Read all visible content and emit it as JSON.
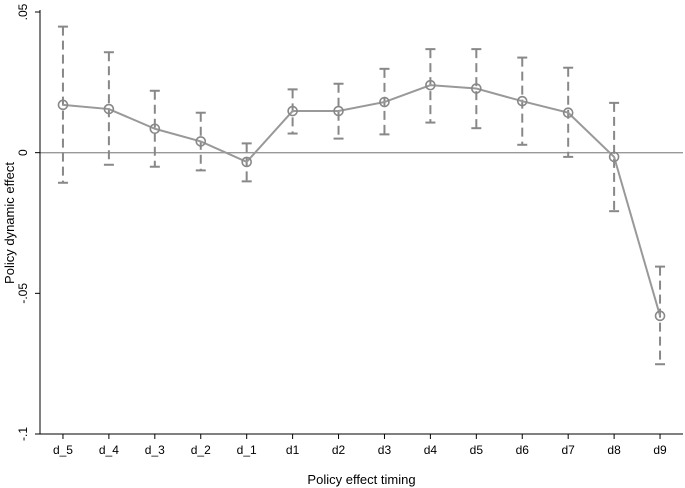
{
  "chart_data": {
    "type": "line",
    "xlabel": "Policy effect timing",
    "ylabel": "Policy dynamic effect",
    "categories": [
      "d_5",
      "d_4",
      "d_3",
      "d_2",
      "d_1",
      "d1",
      "d2",
      "d3",
      "d4",
      "d5",
      "d6",
      "d7",
      "d8",
      "d9"
    ],
    "values": [
      0.017,
      0.0155,
      0.0085,
      0.004,
      -0.0033,
      0.0148,
      0.0148,
      0.018,
      0.024,
      0.0228,
      0.0183,
      0.0142,
      -0.0015,
      -0.058
    ],
    "ci_lower": [
      -0.0107,
      -0.0043,
      -0.005,
      -0.0063,
      -0.0102,
      0.0068,
      0.005,
      0.0065,
      0.0107,
      0.0087,
      0.0028,
      -0.0015,
      -0.0208,
      -0.0752
    ],
    "ci_upper": [
      0.0448,
      0.0357,
      0.022,
      0.0142,
      0.0033,
      0.0225,
      0.0245,
      0.0298,
      0.0368,
      0.0368,
      0.0338,
      0.0302,
      0.0177,
      -0.0405
    ],
    "ylim": [
      -0.1,
      0.05
    ],
    "yticks": [
      -0.1,
      -0.05,
      0,
      0.05
    ],
    "ytick_labels": [
      "-.1",
      "-.05",
      "0",
      ".05"
    ],
    "reference_line": 0,
    "grid": false,
    "colors": {
      "line": "#999999",
      "ci": "#888888",
      "marker": "#888888",
      "zero_line": "#999999",
      "axis": "#000000"
    }
  }
}
